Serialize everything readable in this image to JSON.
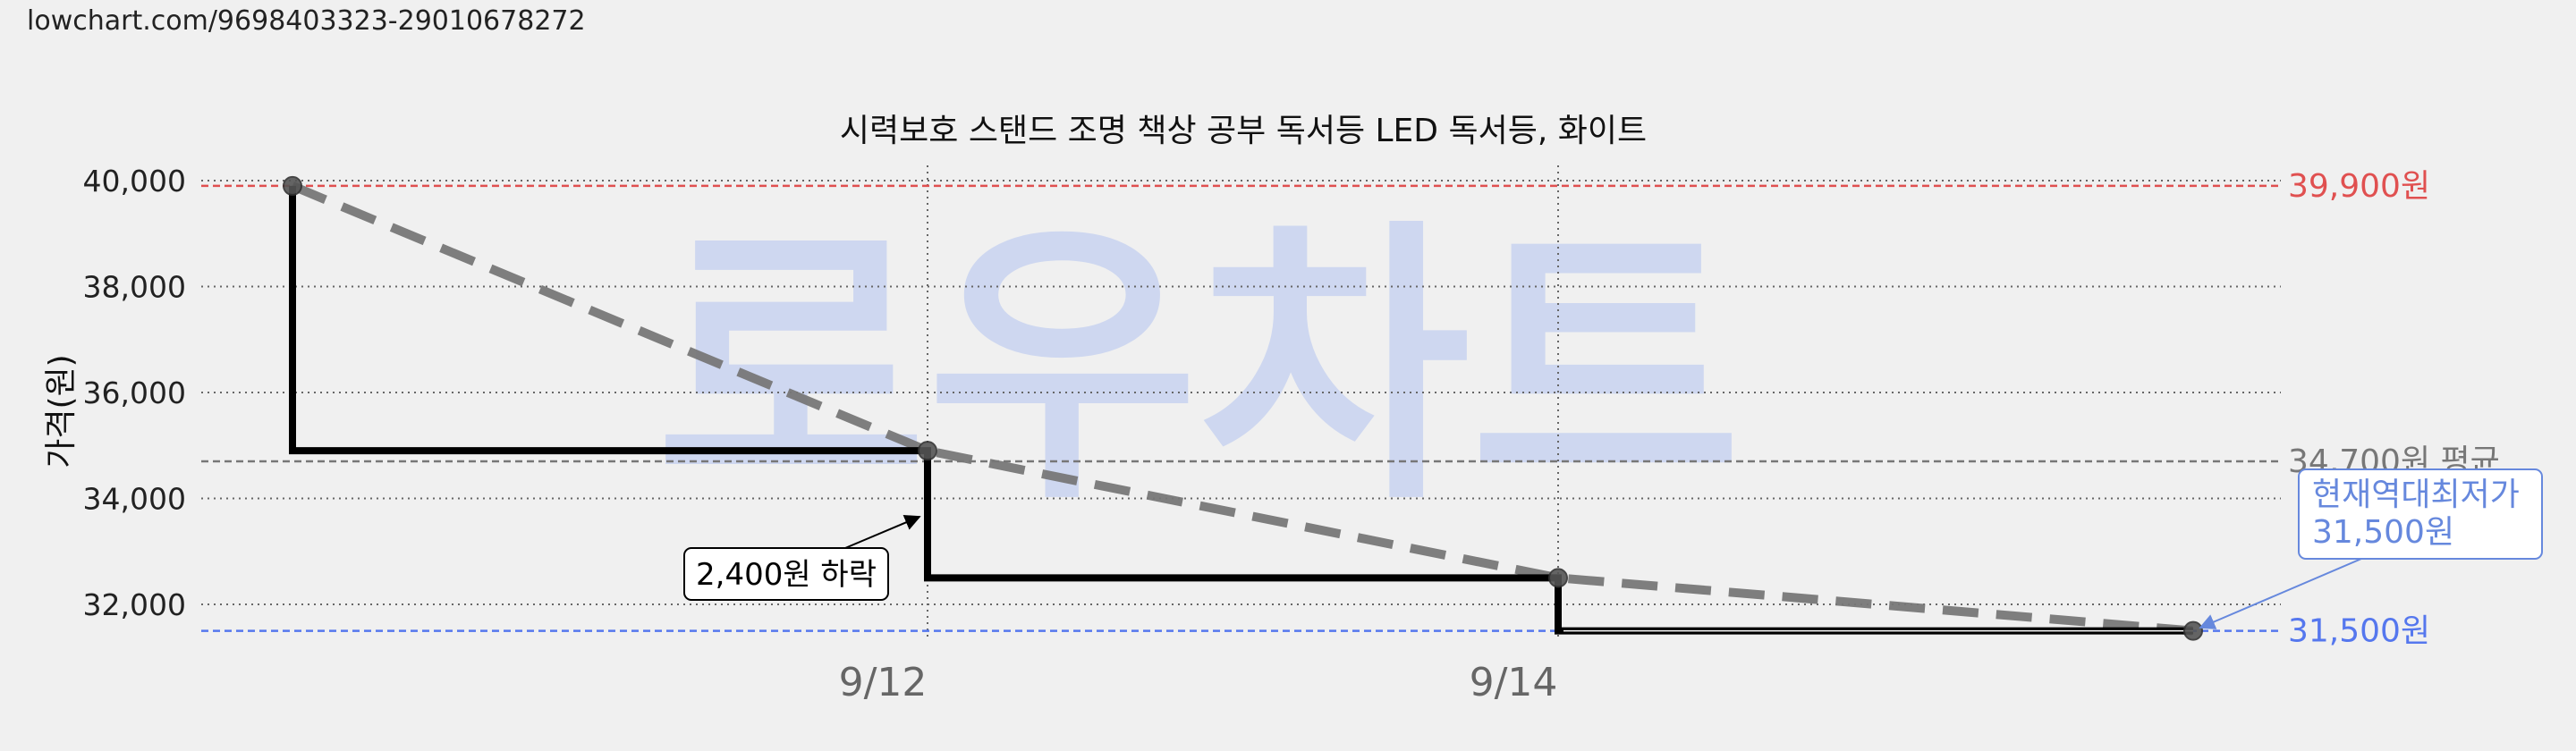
{
  "source_url": "lowchart.com/9698403323-29010678272",
  "watermark": "로우차트",
  "colors": {
    "max_line": "#e05050",
    "avg_line": "#777777",
    "min_line": "#5577ee",
    "callout": "#6688dd",
    "watermark": "#b8c8f0",
    "price_line": "#000000",
    "trend_line": "#777777"
  },
  "chart_data": {
    "type": "line",
    "title": "시력보호 스탠드 조명 책상 공부 독서등 LED 독서등, 화이트",
    "xlabel": "",
    "ylabel": "가격(원)",
    "ylim": [
      31000,
      40300
    ],
    "y_ticks": [
      32000,
      34000,
      36000,
      38000,
      40000
    ],
    "y_tick_labels": [
      "32,000",
      "34,000",
      "36,000",
      "38,000",
      "40,000"
    ],
    "x_ticks": [
      "9/12",
      "9/14"
    ],
    "grid": true,
    "series": [
      {
        "style": "step-solid-black",
        "x": [
          "9/10 18:00",
          "9/10 18:00",
          "9/12",
          "9/12",
          "9/14",
          "9/14",
          "9/16"
        ],
        "values": [
          39900,
          34900,
          34900,
          32500,
          32500,
          31500,
          31500
        ]
      },
      {
        "style": "dashed-gray-trend",
        "x": [
          "9/10 18:00",
          "9/12",
          "9/14",
          "9/16"
        ],
        "values": [
          39900,
          34900,
          32500,
          31500
        ]
      }
    ],
    "markers": [
      {
        "x": "9/10 18:00",
        "value": 39900
      },
      {
        "x": "9/12",
        "value": 34900
      },
      {
        "x": "9/14",
        "value": 32500
      },
      {
        "x": "9/16",
        "value": 31500
      }
    ],
    "reference_lines": {
      "max": {
        "value": 39900,
        "label": "39,900원"
      },
      "avg": {
        "value": 34700,
        "label": "34,700원 평균"
      },
      "min": {
        "value": 31500,
        "label": "31,500원"
      }
    },
    "annotations": {
      "drop": {
        "text": "2,400원 하락"
      },
      "lowest": {
        "line1": "현재역대최저가",
        "line2": "31,500원"
      }
    }
  }
}
